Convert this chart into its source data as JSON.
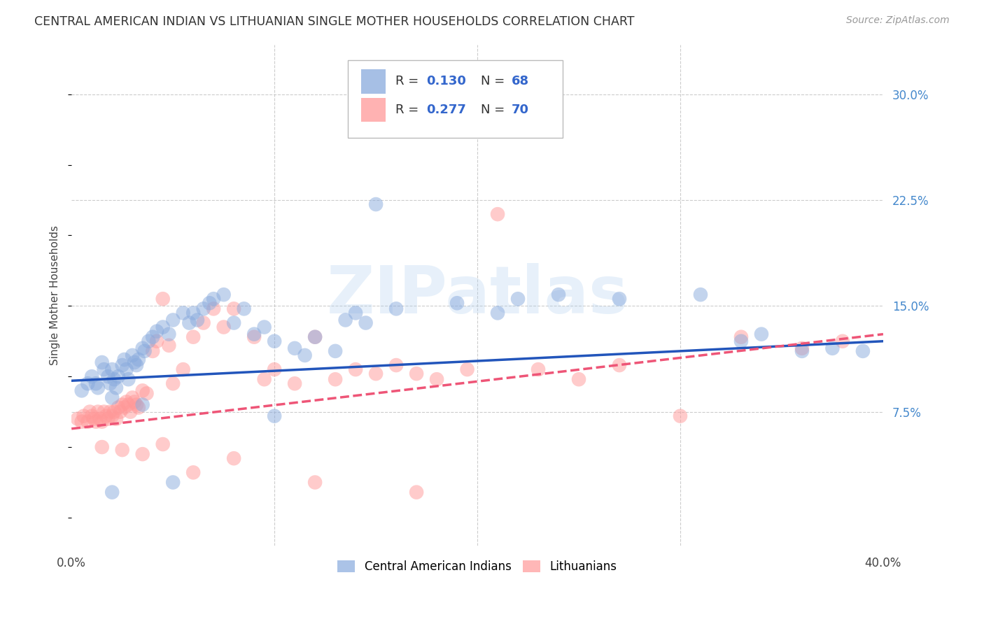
{
  "title": "CENTRAL AMERICAN INDIAN VS LITHUANIAN SINGLE MOTHER HOUSEHOLDS CORRELATION CHART",
  "source": "Source: ZipAtlas.com",
  "ylabel": "Single Mother Households",
  "yticks_labels": [
    "7.5%",
    "15.0%",
    "22.5%",
    "30.0%"
  ],
  "ytick_vals": [
    0.075,
    0.15,
    0.225,
    0.3
  ],
  "xlim": [
    0.0,
    0.4
  ],
  "ylim": [
    -0.02,
    0.335
  ],
  "legend_labels": [
    "Central American Indians",
    "Lithuanians"
  ],
  "blue_color": "#88AADD",
  "pink_color": "#FF9999",
  "blue_line_color": "#2255BB",
  "pink_line_color": "#EE5577",
  "watermark_text": "ZIPatlas",
  "blue_trend_x": [
    0.0,
    0.4
  ],
  "blue_trend_y": [
    0.097,
    0.125
  ],
  "pink_trend_x": [
    0.0,
    0.4
  ],
  "pink_trend_y": [
    0.063,
    0.13
  ],
  "blue_scatter_x": [
    0.005,
    0.008,
    0.01,
    0.012,
    0.013,
    0.015,
    0.016,
    0.018,
    0.019,
    0.02,
    0.02,
    0.021,
    0.022,
    0.023,
    0.025,
    0.026,
    0.027,
    0.028,
    0.03,
    0.031,
    0.032,
    0.033,
    0.035,
    0.036,
    0.038,
    0.04,
    0.042,
    0.045,
    0.048,
    0.05,
    0.055,
    0.058,
    0.06,
    0.062,
    0.065,
    0.068,
    0.07,
    0.075,
    0.08,
    0.085,
    0.09,
    0.095,
    0.1,
    0.11,
    0.115,
    0.12,
    0.13,
    0.135,
    0.14,
    0.145,
    0.15,
    0.16,
    0.18,
    0.19,
    0.21,
    0.22,
    0.24,
    0.27,
    0.31,
    0.33,
    0.34,
    0.36,
    0.375,
    0.39,
    0.02,
    0.035,
    0.05,
    0.1
  ],
  "blue_scatter_y": [
    0.09,
    0.095,
    0.1,
    0.095,
    0.092,
    0.11,
    0.105,
    0.1,
    0.095,
    0.105,
    0.085,
    0.098,
    0.092,
    0.1,
    0.108,
    0.112,
    0.105,
    0.098,
    0.115,
    0.11,
    0.108,
    0.112,
    0.12,
    0.118,
    0.125,
    0.128,
    0.132,
    0.135,
    0.13,
    0.14,
    0.145,
    0.138,
    0.145,
    0.14,
    0.148,
    0.152,
    0.155,
    0.158,
    0.138,
    0.148,
    0.13,
    0.135,
    0.125,
    0.12,
    0.115,
    0.128,
    0.118,
    0.14,
    0.145,
    0.138,
    0.222,
    0.148,
    0.275,
    0.152,
    0.145,
    0.155,
    0.158,
    0.155,
    0.158,
    0.125,
    0.13,
    0.118,
    0.12,
    0.118,
    0.018,
    0.08,
    0.025,
    0.072
  ],
  "pink_scatter_x": [
    0.003,
    0.005,
    0.006,
    0.008,
    0.009,
    0.01,
    0.011,
    0.012,
    0.013,
    0.014,
    0.015,
    0.016,
    0.017,
    0.018,
    0.019,
    0.02,
    0.021,
    0.022,
    0.023,
    0.024,
    0.025,
    0.026,
    0.027,
    0.028,
    0.029,
    0.03,
    0.031,
    0.032,
    0.033,
    0.035,
    0.037,
    0.04,
    0.042,
    0.045,
    0.048,
    0.05,
    0.055,
    0.06,
    0.065,
    0.07,
    0.075,
    0.08,
    0.09,
    0.095,
    0.1,
    0.11,
    0.12,
    0.13,
    0.14,
    0.15,
    0.16,
    0.17,
    0.18,
    0.195,
    0.21,
    0.23,
    0.25,
    0.27,
    0.3,
    0.33,
    0.015,
    0.025,
    0.035,
    0.045,
    0.06,
    0.08,
    0.12,
    0.17,
    0.36,
    0.38
  ],
  "pink_scatter_y": [
    0.07,
    0.068,
    0.072,
    0.068,
    0.075,
    0.072,
    0.07,
    0.068,
    0.075,
    0.07,
    0.068,
    0.075,
    0.072,
    0.07,
    0.075,
    0.072,
    0.075,
    0.07,
    0.078,
    0.075,
    0.08,
    0.078,
    0.082,
    0.08,
    0.075,
    0.085,
    0.082,
    0.08,
    0.078,
    0.09,
    0.088,
    0.118,
    0.125,
    0.155,
    0.122,
    0.095,
    0.105,
    0.128,
    0.138,
    0.148,
    0.135,
    0.148,
    0.128,
    0.098,
    0.105,
    0.095,
    0.128,
    0.098,
    0.105,
    0.102,
    0.108,
    0.102,
    0.098,
    0.105,
    0.215,
    0.105,
    0.098,
    0.108,
    0.072,
    0.128,
    0.05,
    0.048,
    0.045,
    0.052,
    0.032,
    0.042,
    0.025,
    0.018,
    0.12,
    0.125
  ]
}
